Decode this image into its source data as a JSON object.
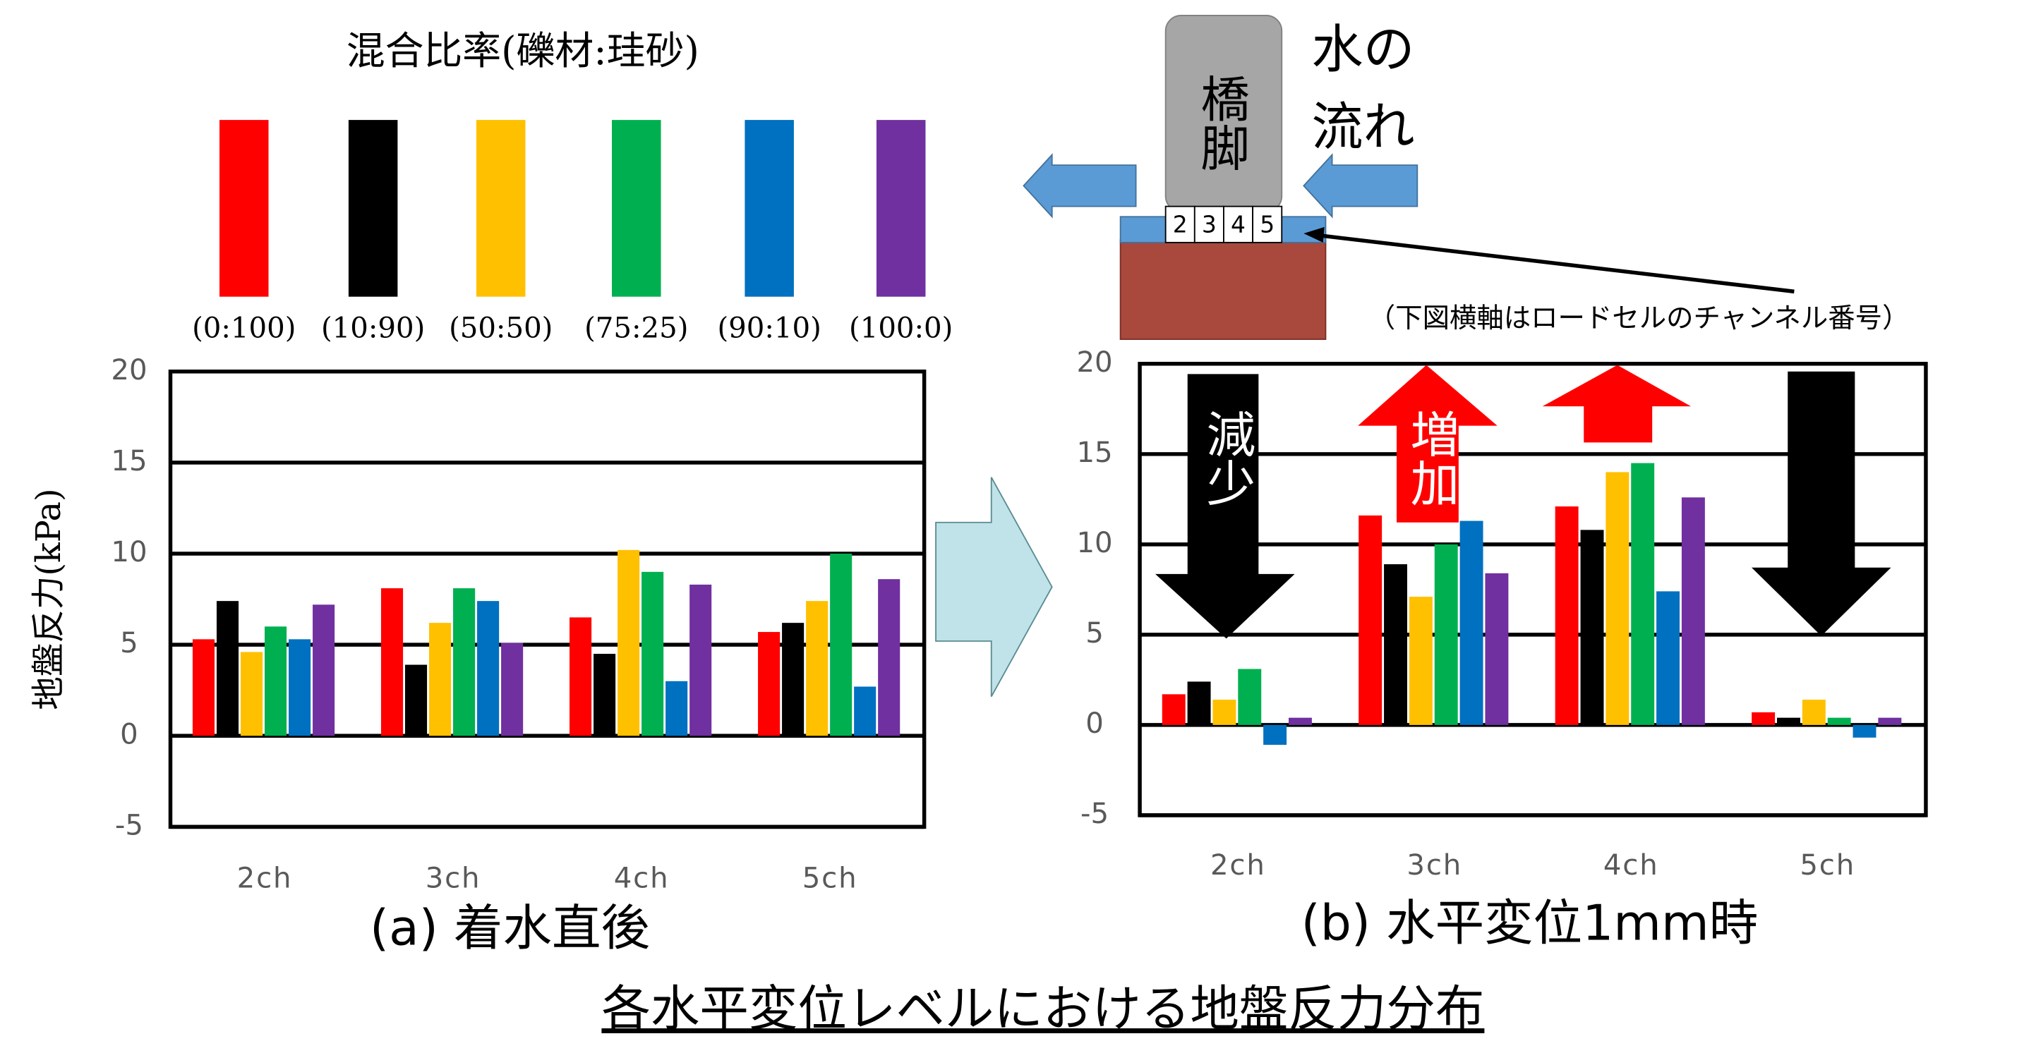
{
  "chart_data": [
    {
      "type": "bar",
      "title": "(a) 着水直後",
      "y_label": "地盤反力(kPa)",
      "legend_title": "混合比率(礫材:珪砂)",
      "categories": [
        "2ch",
        "3ch",
        "4ch",
        "5ch"
      ],
      "series": [
        {
          "name": "(0:100)",
          "color": "#ff0000",
          "values": [
            5.3,
            8.1,
            6.5,
            5.7
          ]
        },
        {
          "name": "(10:90)",
          "color": "#000000",
          "values": [
            7.4,
            3.9,
            4.5,
            6.2
          ]
        },
        {
          "name": "(50:50)",
          "color": "#ffc000",
          "values": [
            4.6,
            6.2,
            10.2,
            7.4
          ]
        },
        {
          "name": "(75:25)",
          "color": "#00b050",
          "values": [
            6.0,
            8.1,
            9.0,
            10.0
          ]
        },
        {
          "name": "(90:10)",
          "color": "#0070c0",
          "values": [
            5.3,
            7.4,
            3.0,
            2.7
          ]
        },
        {
          "name": "(100:0)",
          "color": "#7030a0",
          "values": [
            7.2,
            5.1,
            8.3,
            8.6
          ]
        }
      ],
      "ylim": [
        -5,
        20
      ],
      "yticks": [
        -5,
        0,
        5,
        10,
        15,
        20
      ],
      "grid": true
    },
    {
      "type": "bar",
      "title": "(b) 水平変位1mm時",
      "categories": [
        "2ch",
        "3ch",
        "4ch",
        "5ch"
      ],
      "series": [
        {
          "color": "#ff0000",
          "values": [
            1.7,
            11.6,
            12.1,
            0.7
          ]
        },
        {
          "color": "#000000",
          "values": [
            2.4,
            8.9,
            10.8,
            0.4
          ]
        },
        {
          "color": "#ffc000",
          "values": [
            1.4,
            7.1,
            14.0,
            1.4
          ]
        },
        {
          "color": "#00b050",
          "values": [
            3.1,
            10.0,
            14.5,
            0.4
          ]
        },
        {
          "color": "#0070c0",
          "values": [
            -1.1,
            11.3,
            7.4,
            -0.7
          ]
        },
        {
          "color": "#7030a0",
          "values": [
            0.4,
            8.4,
            12.6,
            0.4
          ]
        }
      ],
      "ylim": [
        -5,
        20
      ],
      "yticks": [
        -5,
        0,
        5,
        10,
        15,
        20
      ],
      "grid": true,
      "annotations": [
        {
          "text": "減少"
        },
        {
          "text": "増加"
        }
      ]
    }
  ],
  "diagram": {
    "pier": "橋脚",
    "flow": [
      "水の",
      "流れ"
    ],
    "channels": [
      "2",
      "3",
      "4",
      "5"
    ],
    "note": "（下図横軸はロードセルのチャンネル番号）"
  },
  "caption": "各水平変位レベルにおける地盤反力分布"
}
